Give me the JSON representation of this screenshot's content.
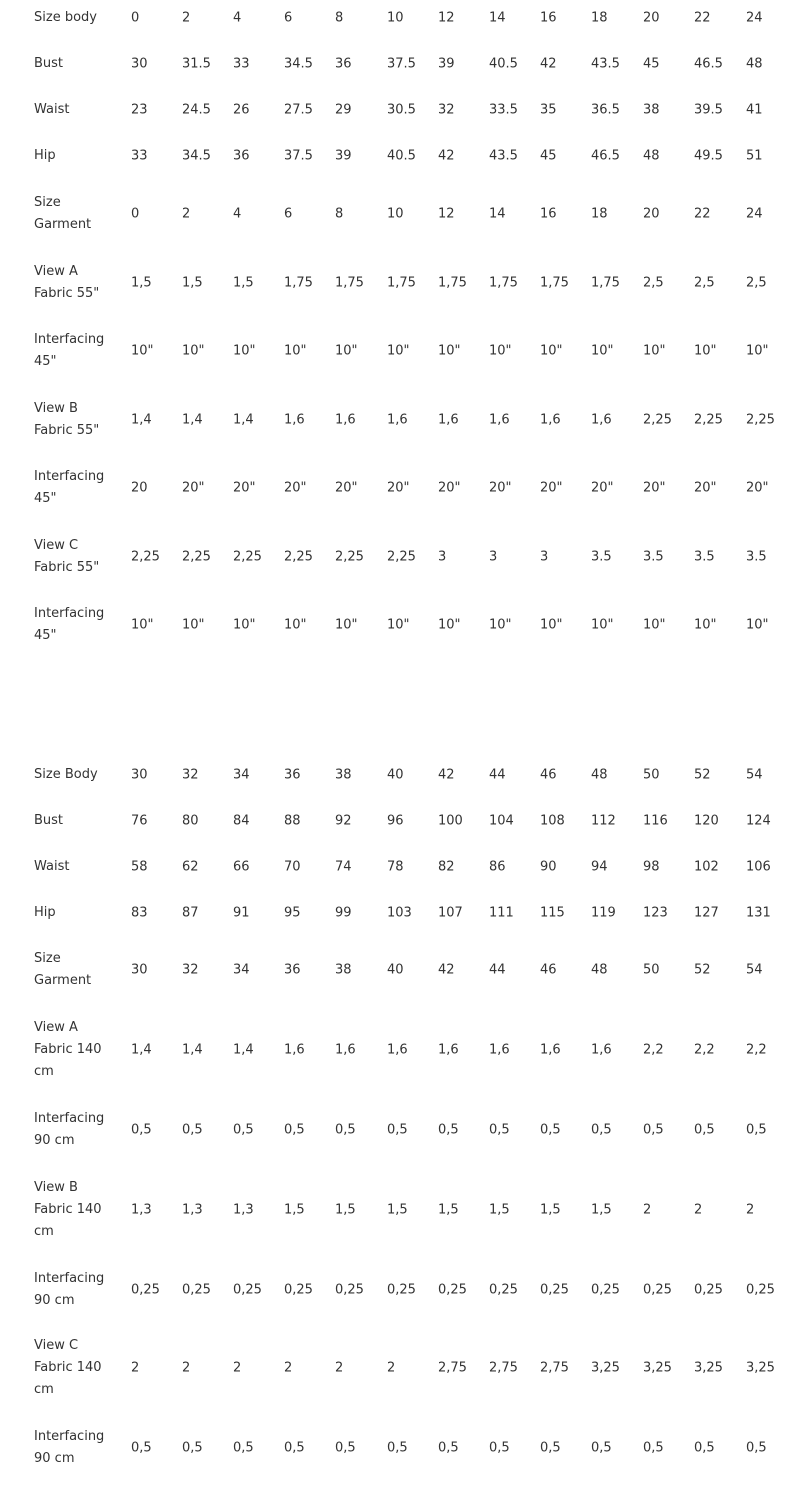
{
  "tables": [
    {
      "columns": 13,
      "rows": [
        {
          "label": " Size body",
          "values": [
            "0",
            "2",
            "4",
            "6",
            "8",
            "10",
            "12",
            "14",
            "16",
            "18",
            "20",
            "22",
            "24"
          ]
        },
        {
          "label": " Bust",
          "values": [
            "30",
            "31.5",
            "33",
            "34.5",
            "36",
            "37.5",
            "39",
            "40.5",
            "42",
            "43.5",
            "45",
            "46.5",
            "48"
          ]
        },
        {
          "label": " Waist",
          "values": [
            "23",
            "24.5",
            "26",
            "27.5",
            "29",
            "30.5",
            "32",
            "33.5",
            "35",
            "36.5",
            "38",
            "39.5",
            "41"
          ]
        },
        {
          "label": " Hip",
          "values": [
            "33",
            "34.5",
            "36",
            "37.5",
            "39",
            "40.5",
            "42",
            "43.5",
            "45",
            "46.5",
            "48",
            "49.5",
            "51"
          ]
        },
        {
          "label": " Size\nGarment",
          "values": [
            "0",
            "2",
            "4",
            "6",
            "8",
            "10",
            "12",
            "14",
            "16",
            "18",
            "20",
            "22",
            "24"
          ]
        },
        {
          "label": " View A\nFabric 55\"",
          "values": [
            "1,5",
            "1,5",
            "1,5",
            "1,75",
            "1,75",
            "1,75",
            "1,75",
            "1,75",
            "1,75",
            "1,75",
            "2,5",
            "2,5",
            "2,5"
          ]
        },
        {
          "label": " Interfacing\n45\"",
          "values": [
            "10\"",
            "10\"",
            "10\"",
            "10\"",
            "10\"",
            "10\"",
            "10\"",
            "10\"",
            "10\"",
            "10\"",
            "10\"",
            "10\"",
            "10\""
          ]
        },
        {
          "label": "View B\nFabric 55\"",
          "values": [
            "1,4",
            "1,4",
            "1,4",
            "1,6",
            "1,6",
            "1,6",
            "1,6",
            "1,6",
            "1,6",
            "1,6",
            "2,25",
            "2,25",
            "2,25"
          ]
        },
        {
          "label": " Interfacing\n45\"",
          "values": [
            "20",
            "20\"",
            "20\"",
            "20\"",
            "20\"",
            "20\"",
            "20\"",
            "20\"",
            "20\"",
            "20\"",
            "20\"",
            "20\"",
            "20\""
          ]
        },
        {
          "label": " View C\nFabric 55\"",
          "values": [
            "2,25",
            "2,25",
            "2,25",
            "2,25",
            "2,25",
            "2,25",
            "3",
            "3",
            "3",
            "3.5",
            "3.5",
            "3.5",
            "3.5"
          ]
        },
        {
          "label": " Interfacing\n45\"",
          "values": [
            "10\"",
            "10\"",
            "10\"",
            "10\"",
            "10\"",
            "10\"",
            "10\"",
            "10\"",
            "10\"",
            "10\"",
            "10\"",
            "10\"",
            "10\""
          ]
        }
      ]
    },
    {
      "columns": 13,
      "rows": [
        {
          "label": " Size Body",
          "values": [
            "30",
            "32",
            "34",
            "36",
            "38",
            "40",
            "42",
            "44",
            "46",
            "48",
            "50",
            "52",
            "54"
          ]
        },
        {
          "label": " Bust",
          "values": [
            "76",
            "80",
            "84",
            "88",
            "92",
            "96",
            "100",
            "104",
            "108",
            "112",
            "116",
            "120",
            "124"
          ]
        },
        {
          "label": " Waist",
          "values": [
            "58",
            "62",
            "66",
            "70",
            "74",
            "78",
            "82",
            "86",
            "90",
            "94",
            "98",
            "102",
            "106"
          ]
        },
        {
          "label": " Hip",
          "values": [
            "83",
            "87",
            "91",
            "95",
            "99",
            "103",
            "107",
            "111",
            "115",
            "119",
            "123",
            "127",
            "131"
          ]
        },
        {
          "label": " Size\nGarment",
          "values": [
            "30",
            "32",
            "34",
            "36",
            "38",
            "40",
            "42",
            "44",
            "46",
            "48",
            "50",
            "52",
            "54"
          ]
        },
        {
          "label": " View A\nFabric 140\ncm",
          "values": [
            "1,4",
            "1,4",
            "1,4",
            "1,6",
            "1,6",
            "1,6",
            "1,6",
            "1,6",
            "1,6",
            "1,6",
            "2,2",
            "2,2",
            "2,2"
          ]
        },
        {
          "label": " Interfacing\n90 cm",
          "values": [
            "0,5",
            "0,5",
            "0,5",
            "0,5",
            "0,5",
            "0,5",
            "0,5",
            "0,5",
            "0,5",
            "0,5",
            "0,5",
            "0,5",
            "0,5"
          ]
        },
        {
          "label": "View B\nFabric 140\ncm",
          "values": [
            "1,3",
            "1,3",
            "1,3",
            "1,5",
            "1,5",
            "1,5",
            "1,5",
            "1,5",
            "1,5",
            "1,5",
            "2",
            "2",
            "2"
          ]
        },
        {
          "label": " Interfacing\n90 cm",
          "values": [
            "0,25",
            "0,25",
            "0,25",
            "0,25",
            "0,25",
            "0,25",
            "0,25",
            "0,25",
            "0,25",
            "0,25",
            "0,25",
            "0,25",
            "0,25"
          ]
        },
        {
          "label": " View C\nFabric 140\ncm",
          "values": [
            "2",
            "2",
            "2",
            "2",
            "2",
            "2",
            "2,75",
            "2,75",
            "2,75",
            "3,25",
            "3,25",
            "3,25",
            "3,25"
          ]
        },
        {
          "label": " Interfacing\n90 cm",
          "values": [
            "0,5",
            "0,5",
            "0,5",
            "0,5",
            "0,5",
            "0,5",
            "0,5",
            "0,5",
            "0,5",
            "0,5",
            "0,5",
            "0,5",
            "0,5"
          ]
        }
      ]
    }
  ]
}
